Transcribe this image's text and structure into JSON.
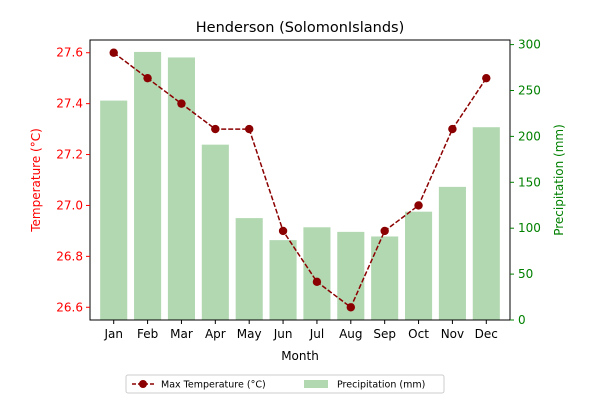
{
  "chart_data": {
    "type": "bar+line",
    "title": "Henderson (SolomonIslands)",
    "xlabel": "Month",
    "categories": [
      "Jan",
      "Feb",
      "Mar",
      "Apr",
      "May",
      "Jun",
      "Jul",
      "Aug",
      "Sep",
      "Oct",
      "Nov",
      "Dec"
    ],
    "temperature": {
      "name": "Max Temperature (°C)",
      "axis_label": "Temperature (°C)",
      "values": [
        27.6,
        27.5,
        27.4,
        27.3,
        27.3,
        26.9,
        26.7,
        26.6,
        26.9,
        27.0,
        27.3,
        27.5
      ],
      "ylim": [
        26.55,
        27.65
      ],
      "ticks": [
        26.6,
        26.8,
        27.0,
        27.2,
        27.4,
        27.6
      ],
      "tick_labels": [
        "26.6",
        "26.8",
        "27.0",
        "27.2",
        "27.4",
        "27.6"
      ],
      "color": "#8b0000",
      "axis_color": "#ff0000"
    },
    "precipitation": {
      "name": "Precipitation (mm)",
      "axis_label": "Precipitation (mm)",
      "values": [
        239,
        292,
        286,
        191,
        111,
        87,
        101,
        96,
        91,
        118,
        145,
        210
      ],
      "ylim": [
        0,
        305
      ],
      "ticks": [
        0,
        50,
        100,
        150,
        200,
        250,
        300
      ],
      "tick_labels": [
        "0",
        "50",
        "100",
        "150",
        "200",
        "250",
        "300"
      ],
      "color": "#b2d8b2",
      "axis_color": "#008000"
    },
    "legend_position": "bottom-center",
    "grid": false
  }
}
